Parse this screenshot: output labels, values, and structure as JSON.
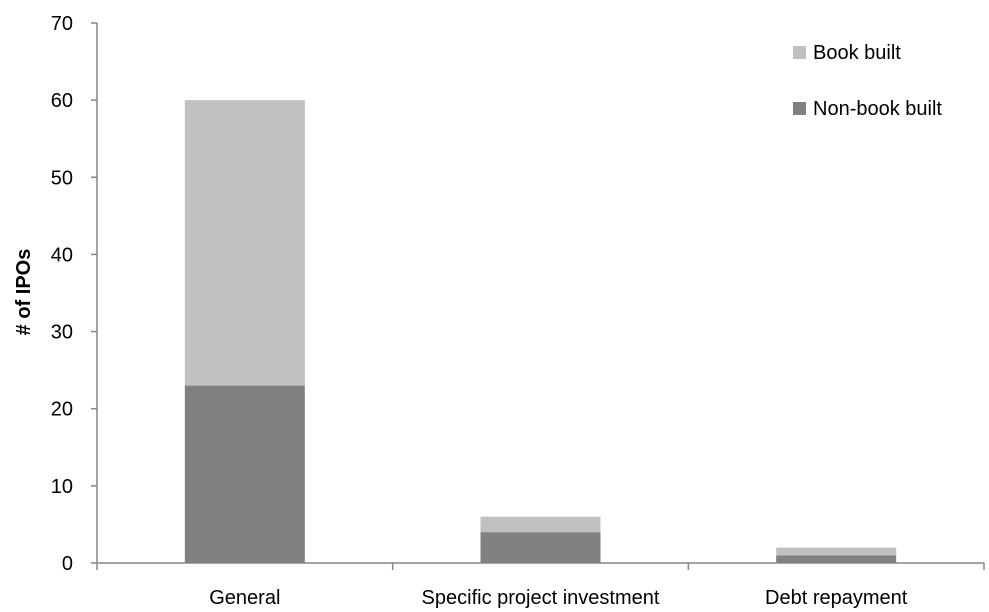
{
  "chart_data": {
    "type": "bar",
    "stacked": true,
    "title": "",
    "xlabel": "",
    "ylabel": "# of IPOs",
    "ylim": [
      0,
      70
    ],
    "yticks": [
      0,
      10,
      20,
      30,
      40,
      50,
      60,
      70
    ],
    "categories": [
      "General",
      "Specific project investment",
      "Debt repayment"
    ],
    "series": [
      {
        "name": "Non-book built",
        "color": "#808080",
        "values": [
          23,
          4,
          1
        ]
      },
      {
        "name": "Book built",
        "color": "#c0c0c0",
        "values": [
          37,
          2,
          1
        ]
      }
    ],
    "legend": {
      "position": "top-right",
      "order": [
        "Book built",
        "Non-book built"
      ]
    },
    "grid": false
  }
}
